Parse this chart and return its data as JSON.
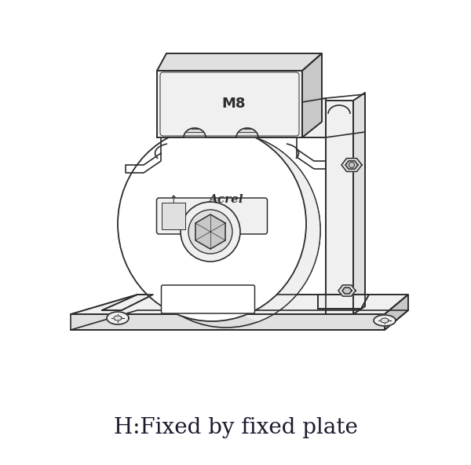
{
  "title": "H:Fixed by fixed plate",
  "title_fontsize": 20,
  "title_color": "#1a1a2e",
  "bg_color": "#ffffff",
  "line_color": "#2d2d2d",
  "line_width": 1.2,
  "fig_width": 6.0,
  "fig_height": 5.92
}
